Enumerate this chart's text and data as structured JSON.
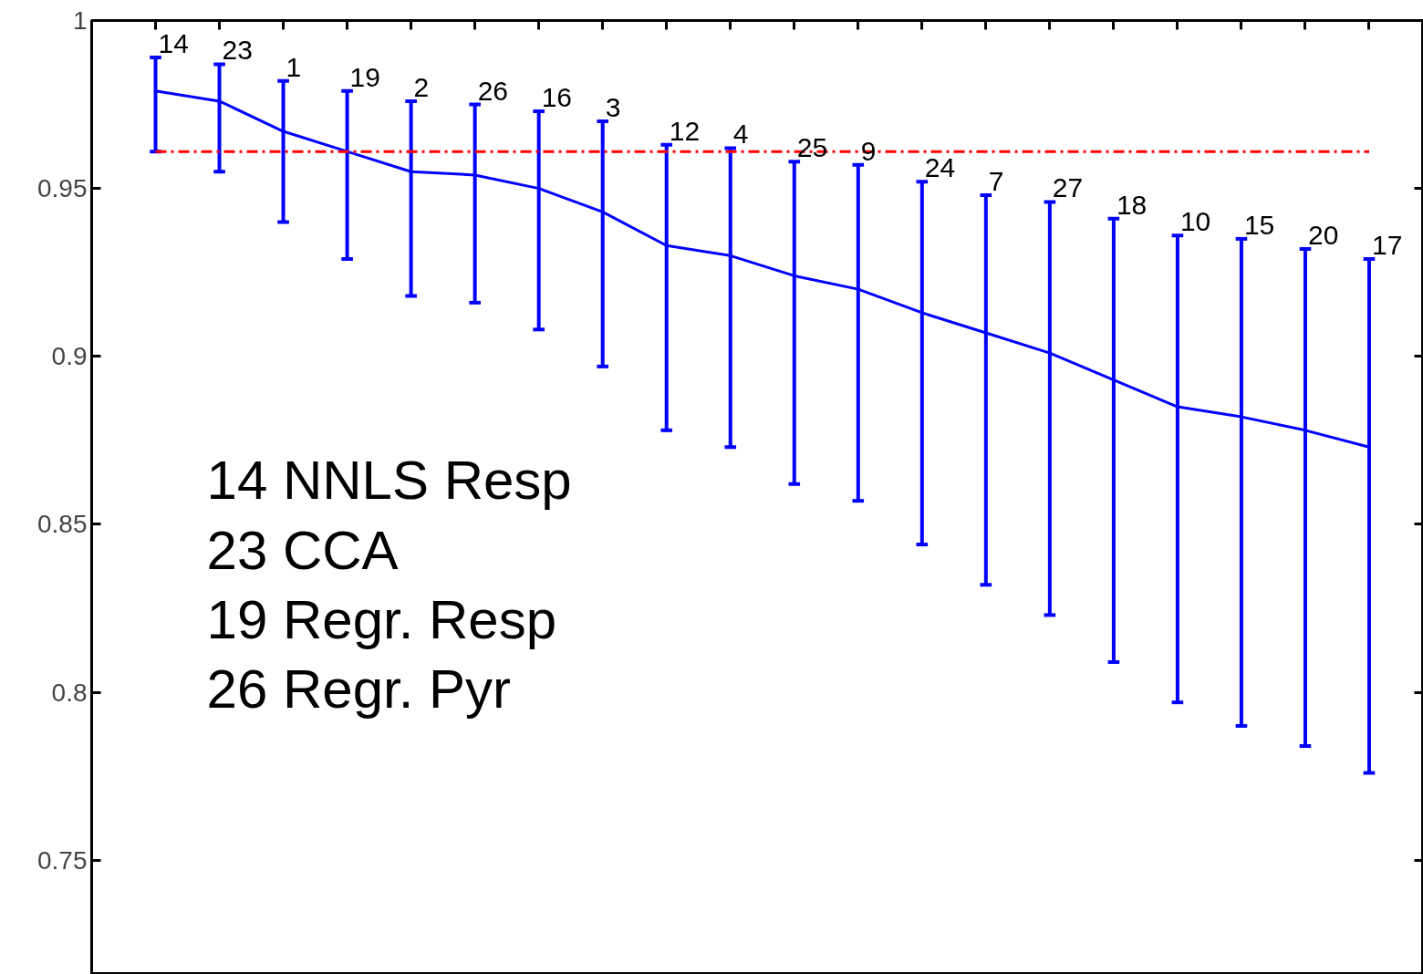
{
  "chart_data": {
    "type": "line",
    "categories": [
      null,
      null,
      null,
      null,
      null,
      null,
      null,
      null,
      null,
      null,
      null,
      null,
      null,
      null,
      null,
      null,
      null,
      null,
      null,
      null
    ],
    "series": [
      {
        "color": "#0000ff",
        "values": [
          0.979,
          0.976,
          0.967,
          0.961,
          0.955,
          0.954,
          0.95,
          0.943,
          0.933,
          0.93,
          0.924,
          0.92,
          0.913,
          0.907,
          0.901,
          0.893,
          0.885,
          0.882,
          0.878,
          0.873
        ],
        "errors": [
          [
            0.961,
            0.989
          ],
          [
            0.955,
            0.987
          ],
          [
            0.94,
            0.982
          ],
          [
            0.929,
            0.979
          ],
          [
            0.918,
            0.976
          ],
          [
            0.916,
            0.975
          ],
          [
            0.908,
            0.973
          ],
          [
            0.897,
            0.97
          ],
          [
            0.878,
            0.963
          ],
          [
            0.873,
            0.962
          ],
          [
            0.862,
            0.958
          ],
          [
            0.857,
            0.957
          ],
          [
            0.844,
            0.952
          ],
          [
            0.832,
            0.948
          ],
          [
            0.823,
            0.946
          ],
          [
            0.809,
            0.941
          ],
          [
            0.797,
            0.936
          ],
          [
            0.79,
            0.935
          ],
          [
            0.784,
            0.932
          ],
          [
            0.776,
            0.929
          ]
        ]
      }
    ],
    "ref_lines": [
      {
        "axis": "y",
        "value": 0.961,
        "color": "#ff0000",
        "line_style": "dashdot"
      }
    ],
    "annotations": [
      "14",
      "23",
      "1",
      "19",
      "2",
      "26",
      "16",
      "3",
      "12",
      "4",
      "25",
      "9",
      "24",
      "7",
      "27",
      "18",
      "10",
      "15",
      "20",
      "17",
      "14 NNLS Resp",
      "23 CCA",
      "19 Regr. Resp",
      "26 Regr. Pyr"
    ],
    "ylim": [
      0.716,
      1
    ],
    "yticks": [
      0.75,
      0.8,
      0.85,
      0.9,
      0.95,
      1
    ],
    "grid": false,
    "marker": "none",
    "line_style": "solid"
  }
}
